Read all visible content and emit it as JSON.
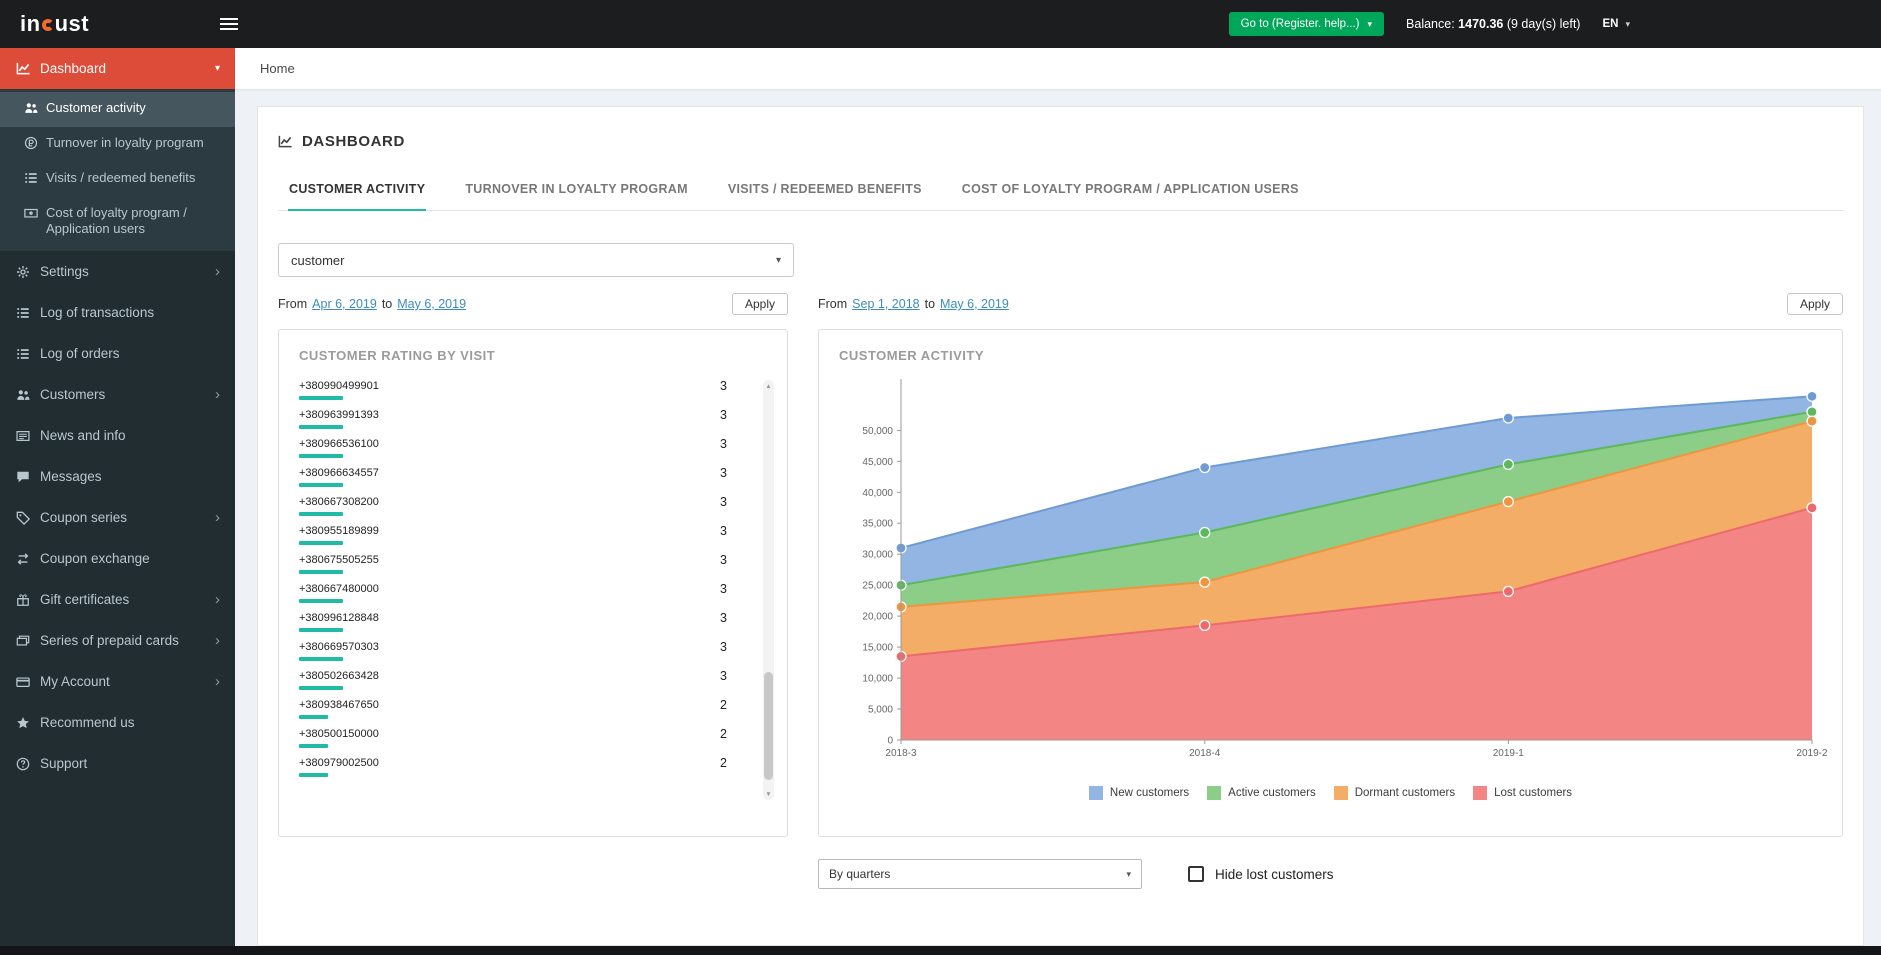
{
  "colors": {
    "accent_teal": "#1fbba6",
    "sidebar_active_red": "#dd4b39",
    "button_green": "#00a65a"
  },
  "topbar": {
    "logo_in": "in",
    "logo_rest": "ust",
    "goto_button": "Go to (Register. help...)",
    "balance_label": "Balance:",
    "balance_value": "1470.36",
    "balance_suffix": "(9 day(s) left)",
    "language": "EN"
  },
  "breadcrumb": {
    "home": "Home"
  },
  "sidebar": {
    "dashboard": {
      "label": "Dashboard",
      "icon": "chart-line-icon",
      "children": [
        {
          "label": "Customer activity",
          "icon": "users-icon",
          "active": true
        },
        {
          "label": "Turnover in loyalty program",
          "icon": "currency-icon"
        },
        {
          "label": "Visits / redeemed benefits",
          "icon": "list-icon"
        },
        {
          "label": "Cost of loyalty program / Application users",
          "icon": "bill-icon"
        }
      ]
    },
    "items": [
      {
        "label": "Settings",
        "icon": "gear-icon",
        "has_children": true
      },
      {
        "label": "Log of transactions",
        "icon": "list-icon"
      },
      {
        "label": "Log of orders",
        "icon": "list-icon"
      },
      {
        "label": "Customers",
        "icon": "users-icon",
        "has_children": true
      },
      {
        "label": "News and info",
        "icon": "newspaper-icon"
      },
      {
        "label": "Messages",
        "icon": "comment-icon"
      },
      {
        "label": "Coupon series",
        "icon": "tag-icon",
        "has_children": true
      },
      {
        "label": "Coupon exchange",
        "icon": "exchange-icon"
      },
      {
        "label": "Gift certificates",
        "icon": "gift-icon",
        "has_children": true
      },
      {
        "label": "Series of prepaid cards",
        "icon": "cards-icon",
        "has_children": true
      },
      {
        "label": "My Account",
        "icon": "credit-card-icon",
        "has_children": true
      },
      {
        "label": "Recommend us",
        "icon": "star-icon"
      },
      {
        "label": "Support",
        "icon": "question-icon"
      }
    ]
  },
  "main": {
    "title": "DASHBOARD",
    "tabs": [
      {
        "label": "CUSTOMER ACTIVITY",
        "active": true
      },
      {
        "label": "TURNOVER IN LOYALTY PROGRAM"
      },
      {
        "label": "VISITS / REDEEMED BENEFITS"
      },
      {
        "label": "COST OF LOYALTY PROGRAM / APPLICATION USERS"
      }
    ],
    "filter_value": "customer"
  },
  "dates": {
    "left": {
      "prefix": "From",
      "from": "Apr 6, 2019",
      "mid": "to",
      "to": "May 6, 2019",
      "apply": "Apply"
    },
    "right": {
      "prefix": "From",
      "from": "Sep 1, 2018",
      "mid": "to",
      "to": "May 6, 2019",
      "apply": "Apply"
    }
  },
  "rating": {
    "title": "CUSTOMER RATING BY VISIT",
    "max_value": 3,
    "rows": [
      {
        "phone": "+380990499901",
        "value": 3
      },
      {
        "phone": "+380963991393",
        "value": 3
      },
      {
        "phone": "+380966536100",
        "value": 3
      },
      {
        "phone": "+380966634557",
        "value": 3
      },
      {
        "phone": "+380667308200",
        "value": 3
      },
      {
        "phone": "+380955189899",
        "value": 3
      },
      {
        "phone": "+380675505255",
        "value": 3
      },
      {
        "phone": "+380667480000",
        "value": 3
      },
      {
        "phone": "+380996128848",
        "value": 3
      },
      {
        "phone": "+380669570303",
        "value": 3
      },
      {
        "phone": "+380502663428",
        "value": 3
      },
      {
        "phone": "+380938467650",
        "value": 2
      },
      {
        "phone": "+380500150000",
        "value": 2
      },
      {
        "phone": "+380979002500",
        "value": 2
      }
    ]
  },
  "chart_data": {
    "type": "area",
    "title": "CUSTOMER ACTIVITY",
    "x": [
      "2018-3",
      "2018-4",
      "2019-1",
      "2019-2"
    ],
    "series": [
      {
        "name": "New customers",
        "color": "#6f9bd3",
        "fill": "#93b5e3",
        "values": [
          31000,
          44000,
          52000,
          55500
        ]
      },
      {
        "name": "Active customers",
        "color": "#5cb85c",
        "fill": "#8ccd88",
        "values": [
          25000,
          33500,
          44500,
          53000
        ]
      },
      {
        "name": "Dormant customers",
        "color": "#f0953f",
        "fill": "#f3ad66",
        "values": [
          21500,
          25500,
          38500,
          51500
        ]
      },
      {
        "name": "Lost customers",
        "color": "#ed6a6a",
        "fill": "#f48585",
        "values": [
          13500,
          18500,
          24000,
          37500
        ]
      }
    ],
    "ylim": [
      0,
      57000
    ],
    "yticks": [
      0,
      5000,
      10000,
      15000,
      20000,
      25000,
      30000,
      35000,
      40000,
      45000,
      50000
    ],
    "xlabel": "",
    "ylabel": "",
    "grid": false,
    "legend_position": "bottom"
  },
  "controls": {
    "period_value": "By quarters",
    "hide_lost_label": "Hide lost customers",
    "hide_lost_checked": false
  }
}
